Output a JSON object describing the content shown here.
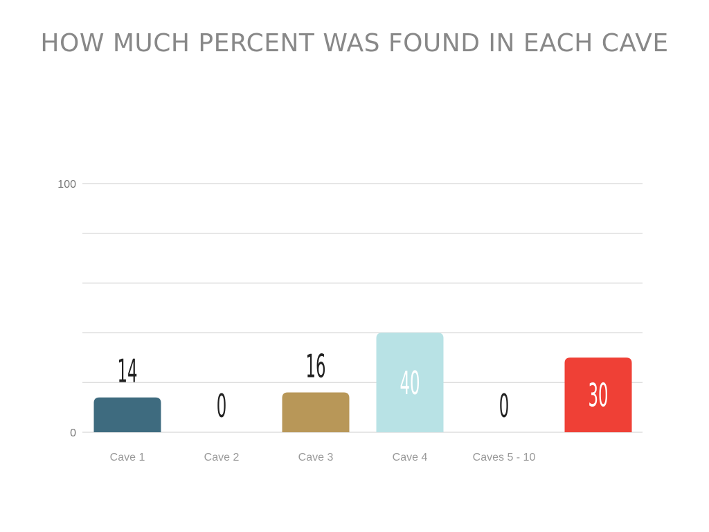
{
  "chart_data": {
    "type": "bar",
    "title": "HOW MUCH PERCENT WAS FOUND IN EACH CAVE",
    "xlabel": "",
    "ylabel": "",
    "ylim": [
      0,
      100
    ],
    "yticks": [
      0,
      100
    ],
    "grid": true,
    "gridlines": [
      0,
      20,
      40,
      60,
      80,
      100
    ],
    "categories": [
      "Cave 1",
      "Cave 2",
      "Cave 3",
      "Cave 4",
      "Caves 5 - 10",
      ""
    ],
    "values": [
      14,
      0,
      16,
      40,
      0,
      30
    ],
    "value_labels": [
      "14",
      "0",
      "16",
      "40",
      "0",
      "30"
    ],
    "colors": [
      "#3e6b7f",
      "#3e6b7f",
      "#b89758",
      "#b8e2e5",
      "#3e6b7f",
      "#ef4036"
    ],
    "label_colors": [
      "#222222",
      "#222222",
      "#222222",
      "#ffffff",
      "#222222",
      "#ffffff"
    ],
    "grid_color": "#dddddd"
  }
}
